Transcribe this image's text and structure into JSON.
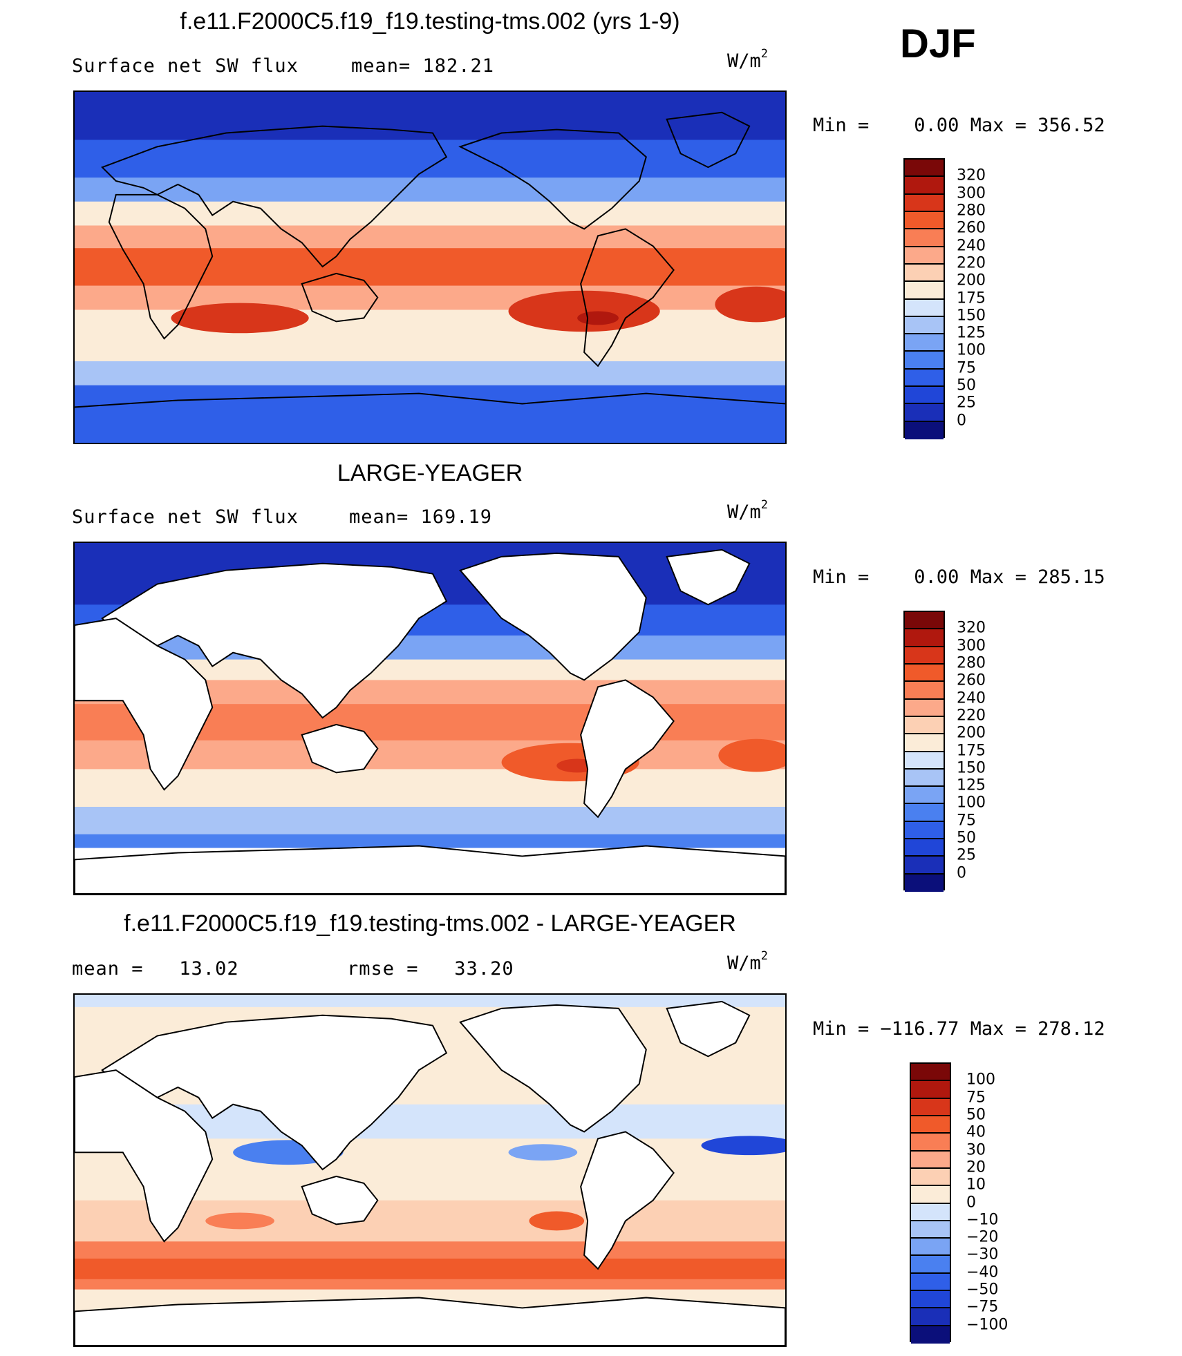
{
  "season": "DJF",
  "panels": [
    {
      "title": "f.e11.F2000C5.f19_f19.testing-tms.002 (yrs 1-9)",
      "left_label": "Surface net SW flux",
      "stat_label": "mean= 182.21",
      "units_base": "W/m",
      "units_sup": "2",
      "minmax": "Min =    0.00 Max = 356.52",
      "colorbar_labels": [
        "320",
        "300",
        "280",
        "260",
        "240",
        "220",
        "200",
        "175",
        "150",
        "125",
        "100",
        "75",
        "50",
        "25",
        "0"
      ]
    },
    {
      "title": "LARGE-YEAGER",
      "left_label": "Surface net SW flux",
      "stat_label": "mean= 169.19",
      "units_base": "W/m",
      "units_sup": "2",
      "minmax": "Min =    0.00 Max = 285.15",
      "colorbar_labels": [
        "320",
        "300",
        "280",
        "260",
        "240",
        "220",
        "200",
        "175",
        "150",
        "125",
        "100",
        "75",
        "50",
        "25",
        "0"
      ]
    },
    {
      "title": "f.e11.F2000C5.f19_f19.testing-tms.002 - LARGE-YEAGER",
      "left_label": "mean =   13.02",
      "stat_label": "rmse =   33.20",
      "units_base": "W/m",
      "units_sup": "2",
      "minmax": "Min = −116.77 Max = 278.12",
      "colorbar_labels": [
        "100",
        "75",
        "50",
        "40",
        "30",
        "20",
        "10",
        "0",
        "−10",
        "−20",
        "−30",
        "−40",
        "−50",
        "−75",
        "−100"
      ]
    }
  ],
  "palette": [
    "#0b0f7a",
    "#1a2fb8",
    "#2046d8",
    "#2f5fe8",
    "#4a80f0",
    "#7aa4f4",
    "#a8c4f6",
    "#d4e4fb",
    "#fbecd8",
    "#fcd0b4",
    "#fca98a",
    "#f97e55",
    "#f05a2a",
    "#d8361a",
    "#b0180e",
    "#7a0808"
  ],
  "colors": {
    "land": "#ffffff",
    "coast": "#000000"
  }
}
